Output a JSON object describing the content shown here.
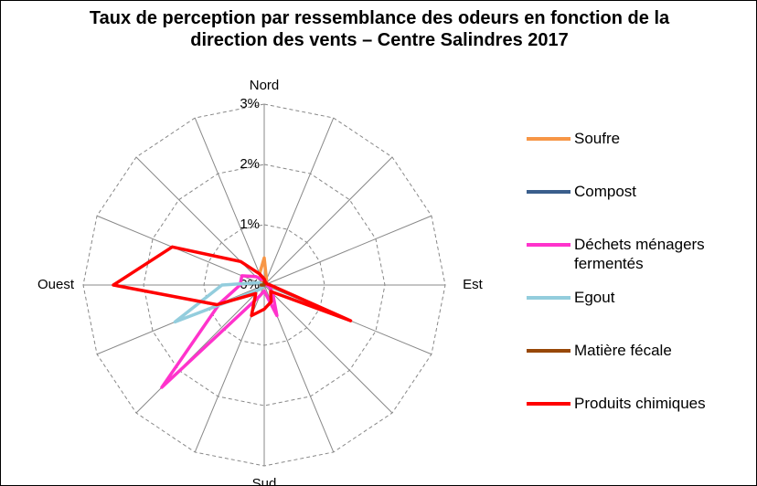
{
  "chart_data": {
    "type": "radar",
    "title": "Taux de perception par ressemblance des odeurs en fonction de la direction des vents – Centre Salindres 2017",
    "categories": [
      "Nord",
      null,
      null,
      null,
      "Est",
      null,
      null,
      null,
      "Sud",
      null,
      null,
      null,
      "Ouest",
      null,
      null,
      null
    ],
    "ylim": [
      0,
      3
    ],
    "yticks": [
      {
        "value": 0,
        "label": "0%"
      },
      {
        "value": 1,
        "label": "1%"
      },
      {
        "value": 2,
        "label": "2%"
      },
      {
        "value": 3,
        "label": "3%"
      }
    ],
    "grid": true,
    "series": [
      {
        "name": "Soufre",
        "color": "#f79646",
        "values": [
          0.45,
          0.1,
          0,
          0,
          0,
          0,
          0,
          0,
          0,
          0,
          0,
          0,
          0,
          0,
          0,
          0.2
        ]
      },
      {
        "name": "Compost",
        "color": "#3a5e8c",
        "values": [
          0,
          0,
          0,
          0,
          0,
          0,
          0,
          0,
          0,
          0,
          0,
          0,
          0,
          0,
          0,
          0
        ]
      },
      {
        "name": "Déchets ménagers fermentés",
        "color": "#ff33cc",
        "values": [
          0.1,
          0.05,
          0,
          0,
          0.05,
          0.1,
          0.2,
          0.55,
          0.1,
          0.2,
          2.4,
          0.8,
          0.4,
          0.4,
          0.2,
          0.1
        ]
      },
      {
        "name": "Egout",
        "color": "#93cddd",
        "values": [
          0,
          0,
          0,
          0,
          0,
          0,
          0,
          0,
          0,
          0,
          0.1,
          1.6,
          0.7,
          0.1,
          0,
          0
        ]
      },
      {
        "name": "Matière fécale",
        "color": "#984807",
        "values": [
          0.05,
          0,
          0,
          0,
          0,
          0,
          0,
          0,
          0,
          0,
          0,
          0,
          0.05,
          0,
          0,
          0
        ]
      },
      {
        "name": "Produits chimiques",
        "color": "#ff0000",
        "values": [
          0.1,
          0.05,
          0.05,
          0.05,
          0.1,
          1.55,
          0.15,
          0.3,
          0.4,
          0.55,
          0.2,
          0.85,
          2.5,
          1.65,
          0.55,
          0.2
        ]
      }
    ]
  }
}
